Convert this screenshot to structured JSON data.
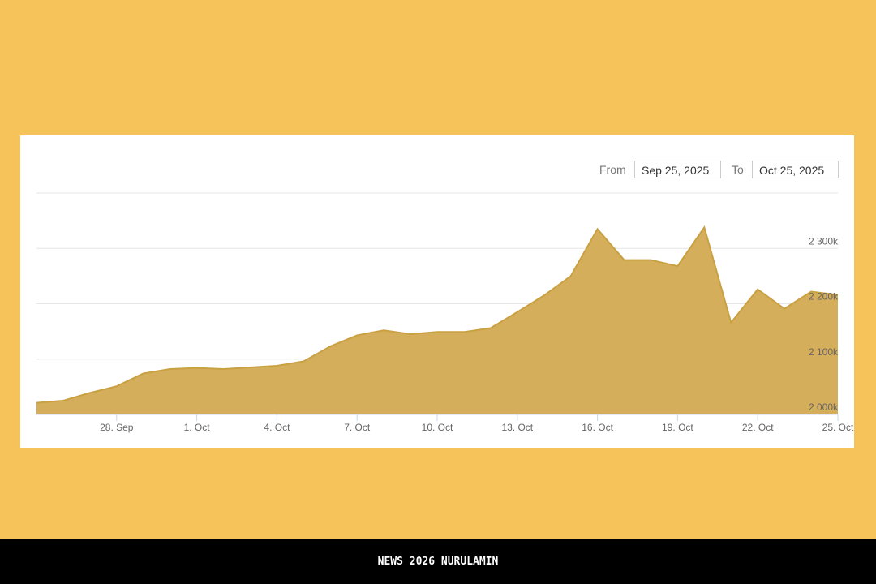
{
  "chart_data": {
    "type": "area",
    "x": [
      "2025-09-25",
      "2025-09-26",
      "2025-09-27",
      "2025-09-28",
      "2025-09-29",
      "2025-09-30",
      "2025-10-01",
      "2025-10-02",
      "2025-10-03",
      "2025-10-04",
      "2025-10-05",
      "2025-10-06",
      "2025-10-07",
      "2025-10-08",
      "2025-10-09",
      "2025-10-10",
      "2025-10-11",
      "2025-10-12",
      "2025-10-13",
      "2025-10-14",
      "2025-10-15",
      "2025-10-16",
      "2025-10-17",
      "2025-10-18",
      "2025-10-19",
      "2025-10-20",
      "2025-10-21",
      "2025-10-22",
      "2025-10-23",
      "2025-10-24",
      "2025-10-25"
    ],
    "values": [
      2021,
      2025,
      2039,
      2051,
      2074,
      2082,
      2084,
      2082,
      2085,
      2088,
      2096,
      2123,
      2143,
      2152,
      2145,
      2149,
      2149,
      2156,
      2185,
      2215,
      2250,
      2335,
      2279,
      2279,
      2268,
      2338,
      2166,
      2226,
      2191,
      2222,
      2216
    ],
    "color": "#d4ae5a",
    "line_color": "#c9a042",
    "xlim": [
      "2025-09-25",
      "2025-10-25"
    ],
    "xticks": [
      {
        "value": "2025-09-28",
        "label": "28. Sep"
      },
      {
        "value": "2025-10-01",
        "label": "1. Oct"
      },
      {
        "value": "2025-10-04",
        "label": "4. Oct"
      },
      {
        "value": "2025-10-07",
        "label": "7. Oct"
      },
      {
        "value": "2025-10-10",
        "label": "10. Oct"
      },
      {
        "value": "2025-10-13",
        "label": "13. Oct"
      },
      {
        "value": "2025-10-16",
        "label": "16. Oct"
      },
      {
        "value": "2025-10-19",
        "label": "19. Oct"
      },
      {
        "value": "2025-10-22",
        "label": "22. Oct"
      },
      {
        "value": "2025-10-25",
        "label": "25. Oct"
      }
    ],
    "ylim": [
      2000,
      2400
    ],
    "yticks": [
      {
        "value": 2000,
        "label": "2 000k"
      },
      {
        "value": 2100,
        "label": "2 100k"
      },
      {
        "value": 2200,
        "label": "2 200k"
      },
      {
        "value": 2300,
        "label": "2 300k"
      }
    ],
    "grid": true
  },
  "date_range": {
    "from_label": "From",
    "from": "Sep 25, 2025",
    "to_label": "To",
    "to": "Oct 25, 2025"
  },
  "footer": "NEWS 2026 NURULAMIN"
}
